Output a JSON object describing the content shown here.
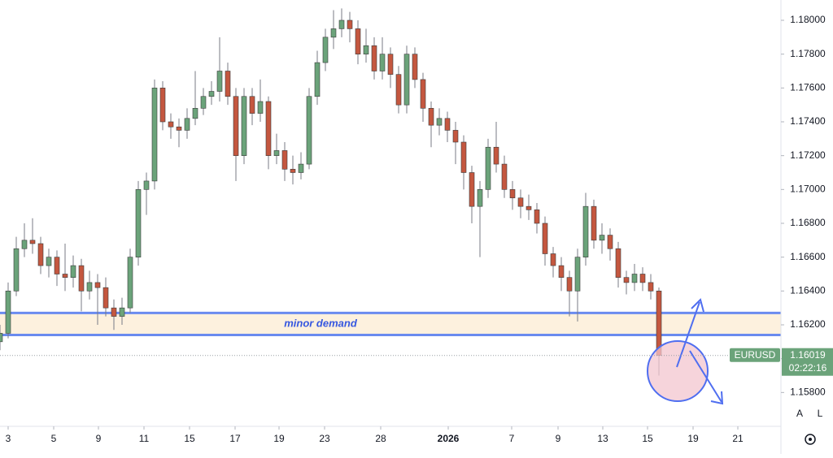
{
  "chart_data": {
    "type": "candlestick",
    "symbol": "EURUSD",
    "countdown": "02:22:16",
    "up_color": "#6ba37a",
    "down_color": "#c4573f",
    "xlim": [
      0,
      96
    ],
    "xticks": [
      {
        "value": 1.0,
        "label": "3"
      },
      {
        "value": 6.6,
        "label": "5"
      },
      {
        "value": 12.1,
        "label": "9"
      },
      {
        "value": 17.7,
        "label": "11"
      },
      {
        "value": 23.3,
        "label": "15"
      },
      {
        "value": 28.9,
        "label": "17"
      },
      {
        "value": 34.3,
        "label": "19"
      },
      {
        "value": 39.9,
        "label": "23"
      },
      {
        "value": 46.8,
        "label": "28"
      },
      {
        "value": 55.1,
        "label": "2026"
      },
      {
        "value": 62.9,
        "label": "7"
      },
      {
        "value": 68.6,
        "label": "9"
      },
      {
        "value": 74.1,
        "label": "13"
      },
      {
        "value": 79.6,
        "label": "15"
      },
      {
        "value": 85.2,
        "label": "19"
      },
      {
        "value": 90.7,
        "label": "21"
      }
    ],
    "ylim": [
      1.156,
      1.1812
    ],
    "yticks": [
      {
        "value": 1.158,
        "label": "1.15800"
      },
      {
        "value": 1.16,
        "label": "1.16000"
      },
      {
        "value": 1.162,
        "label": "1.16200"
      },
      {
        "value": 1.164,
        "label": "1.16400"
      },
      {
        "value": 1.166,
        "label": "1.16600"
      },
      {
        "value": 1.168,
        "label": "1.16800"
      },
      {
        "value": 1.17,
        "label": "1.17000"
      },
      {
        "value": 1.172,
        "label": "1.17200"
      },
      {
        "value": 1.174,
        "label": "1.17400"
      },
      {
        "value": 1.176,
        "label": "1.17600"
      },
      {
        "value": 1.178,
        "label": "1.17800"
      },
      {
        "value": 1.18,
        "label": "1.18000"
      }
    ],
    "zone": {
      "label": "minor demand",
      "top": 1.1627,
      "bottom": 1.1614,
      "color": "#6a8bef"
    },
    "candles": [
      [
        1.161,
        1.162,
        1.1605,
        1.1615
      ],
      [
        1.1615,
        1.1645,
        1.1612,
        1.164
      ],
      [
        1.164,
        1.1672,
        1.1637,
        1.1665
      ],
      [
        1.1665,
        1.168,
        1.166,
        1.167
      ],
      [
        1.167,
        1.1683,
        1.1662,
        1.1668
      ],
      [
        1.1668,
        1.1672,
        1.165,
        1.1655
      ],
      [
        1.1655,
        1.1665,
        1.1648,
        1.166
      ],
      [
        1.166,
        1.1664,
        1.1643,
        1.165
      ],
      [
        1.165,
        1.1668,
        1.164,
        1.1648
      ],
      [
        1.1648,
        1.1661,
        1.1642,
        1.1655
      ],
      [
        1.1655,
        1.1659,
        1.1628,
        1.164
      ],
      [
        1.164,
        1.1652,
        1.1635,
        1.1645
      ],
      [
        1.1645,
        1.165,
        1.162,
        1.1642
      ],
      [
        1.1642,
        1.1648,
        1.1625,
        1.163
      ],
      [
        1.163,
        1.1635,
        1.1617,
        1.1625
      ],
      [
        1.1625,
        1.1636,
        1.162,
        1.163
      ],
      [
        1.163,
        1.1665,
        1.1627,
        1.166
      ],
      [
        1.166,
        1.1705,
        1.1655,
        1.17
      ],
      [
        1.17,
        1.171,
        1.1685,
        1.1705
      ],
      [
        1.1705,
        1.1765,
        1.17,
        1.176
      ],
      [
        1.176,
        1.1764,
        1.1735,
        1.174
      ],
      [
        1.174,
        1.1745,
        1.173,
        1.1737
      ],
      [
        1.1737,
        1.1742,
        1.1725,
        1.1735
      ],
      [
        1.1735,
        1.1748,
        1.173,
        1.1742
      ],
      [
        1.1742,
        1.177,
        1.1738,
        1.1748
      ],
      [
        1.1748,
        1.176,
        1.1744,
        1.1755
      ],
      [
        1.1755,
        1.1764,
        1.175,
        1.1758
      ],
      [
        1.1758,
        1.179,
        1.1752,
        1.177
      ],
      [
        1.177,
        1.1775,
        1.175,
        1.1755
      ],
      [
        1.1755,
        1.176,
        1.1705,
        1.172
      ],
      [
        1.172,
        1.176,
        1.1715,
        1.1755
      ],
      [
        1.1755,
        1.176,
        1.1738,
        1.1745
      ],
      [
        1.1745,
        1.1765,
        1.174,
        1.1752
      ],
      [
        1.1752,
        1.1755,
        1.1712,
        1.172
      ],
      [
        1.172,
        1.1733,
        1.1715,
        1.1723
      ],
      [
        1.1723,
        1.1728,
        1.1705,
        1.1712
      ],
      [
        1.1712,
        1.172,
        1.1703,
        1.171
      ],
      [
        1.171,
        1.1722,
        1.1706,
        1.1715
      ],
      [
        1.1715,
        1.176,
        1.1712,
        1.1755
      ],
      [
        1.1755,
        1.1782,
        1.175,
        1.1775
      ],
      [
        1.1775,
        1.1795,
        1.177,
        1.179
      ],
      [
        1.179,
        1.1806,
        1.1783,
        1.1795
      ],
      [
        1.1795,
        1.1807,
        1.179,
        1.18
      ],
      [
        1.18,
        1.1805,
        1.1787,
        1.1795
      ],
      [
        1.1795,
        1.18,
        1.1774,
        1.178
      ],
      [
        1.178,
        1.1795,
        1.1775,
        1.1785
      ],
      [
        1.1785,
        1.179,
        1.1765,
        1.177
      ],
      [
        1.177,
        1.179,
        1.1765,
        1.178
      ],
      [
        1.178,
        1.1784,
        1.176,
        1.1768
      ],
      [
        1.1768,
        1.1773,
        1.1745,
        1.175
      ],
      [
        1.175,
        1.1785,
        1.1745,
        1.178
      ],
      [
        1.178,
        1.1784,
        1.176,
        1.1765
      ],
      [
        1.1765,
        1.1769,
        1.174,
        1.1748
      ],
      [
        1.1748,
        1.1752,
        1.1725,
        1.1738
      ],
      [
        1.1738,
        1.1748,
        1.1732,
        1.1742
      ],
      [
        1.1742,
        1.1746,
        1.1728,
        1.1735
      ],
      [
        1.1735,
        1.174,
        1.1715,
        1.1728
      ],
      [
        1.1728,
        1.1732,
        1.17,
        1.171
      ],
      [
        1.171,
        1.1714,
        1.168,
        1.169
      ],
      [
        1.169,
        1.1705,
        1.166,
        1.17
      ],
      [
        1.17,
        1.173,
        1.1695,
        1.1725
      ],
      [
        1.1725,
        1.174,
        1.171,
        1.1715
      ],
      [
        1.1715,
        1.172,
        1.1695,
        1.17
      ],
      [
        1.17,
        1.1705,
        1.1688,
        1.1695
      ],
      [
        1.1695,
        1.17,
        1.1683,
        1.169
      ],
      [
        1.169,
        1.1697,
        1.1682,
        1.1688
      ],
      [
        1.1688,
        1.1692,
        1.1674,
        1.168
      ],
      [
        1.168,
        1.1684,
        1.1655,
        1.1662
      ],
      [
        1.1662,
        1.1666,
        1.1648,
        1.1655
      ],
      [
        1.1655,
        1.166,
        1.164,
        1.1648
      ],
      [
        1.1648,
        1.1652,
        1.1625,
        1.164
      ],
      [
        1.164,
        1.1665,
        1.1622,
        1.166
      ],
      [
        1.166,
        1.1698,
        1.1655,
        1.169
      ],
      [
        1.169,
        1.1694,
        1.1665,
        1.167
      ],
      [
        1.167,
        1.168,
        1.1662,
        1.1673
      ],
      [
        1.1673,
        1.1677,
        1.1658,
        1.1665
      ],
      [
        1.1665,
        1.1669,
        1.1642,
        1.1648
      ],
      [
        1.1648,
        1.1652,
        1.1638,
        1.1645
      ],
      [
        1.1645,
        1.1656,
        1.164,
        1.165
      ],
      [
        1.165,
        1.1654,
        1.164,
        1.1645
      ],
      [
        1.1645,
        1.165,
        1.1635,
        1.164
      ],
      [
        1.164,
        1.1642,
        1.159,
        1.16019
      ]
    ]
  },
  "controls": [
    "A",
    "L"
  ]
}
